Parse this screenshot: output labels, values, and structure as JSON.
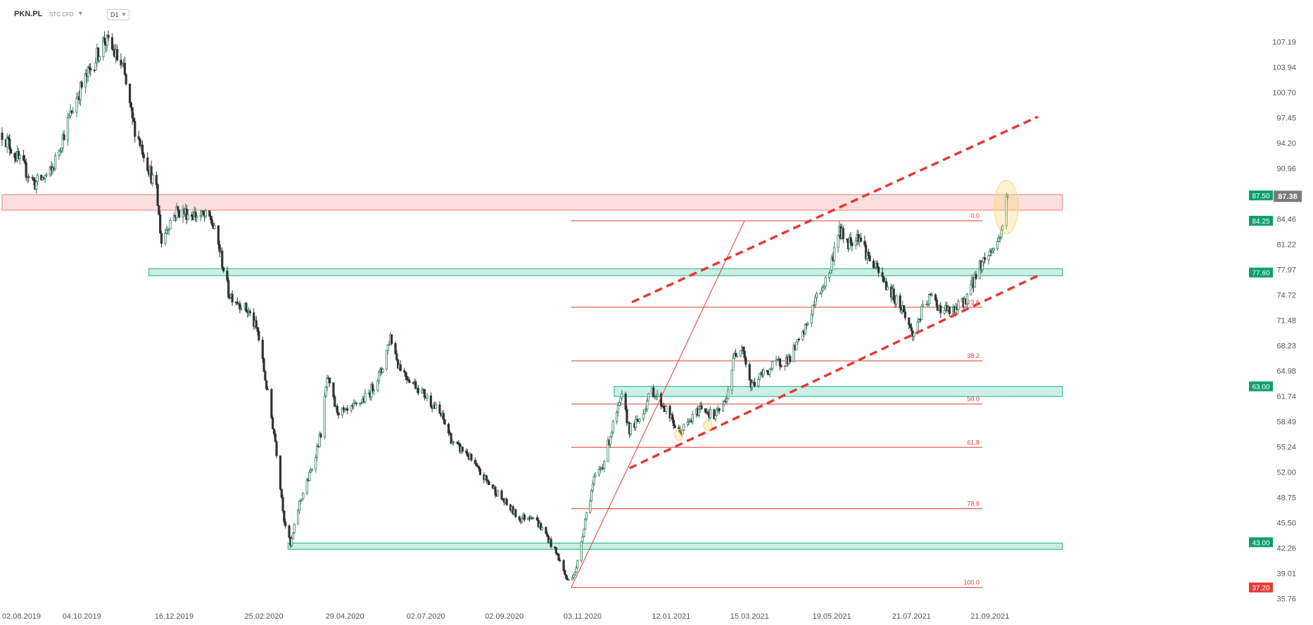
{
  "header": {
    "symbol": "PKN.PL",
    "instrument_type": "STC CFD",
    "timeframe": "D1"
  },
  "colors": {
    "bull": "#2e7d5b",
    "bear": "#333333",
    "support_zone": "#19b38a",
    "resistance_zone": "#f4a3a3",
    "fib_line": "#e53935",
    "channel": "#e53935",
    "current_price_bg": "#7a7a7a",
    "level_green": "#0e9f6e",
    "level_red": "#e53935",
    "highlight": "#f6d77c"
  },
  "chart_data": {
    "type": "candlestick",
    "title": "",
    "ylim": [
      35.0,
      109.5
    ],
    "y_ticks": [
      "107.19",
      "103.94",
      "100.70",
      "97.45",
      "94.20",
      "90.96",
      "87.71",
      "84.46",
      "81.22",
      "77.97",
      "74.72",
      "71.48",
      "68.23",
      "64.98",
      "61.74",
      "58.49",
      "55.24",
      "52.00",
      "48.75",
      "45.50",
      "42.26",
      "39.01",
      "35.76"
    ],
    "x_ticks": [
      {
        "label": "02.08.2019",
        "date": "2019-08-02"
      },
      {
        "label": "04.10.2019",
        "date": "2019-10-04"
      },
      {
        "label": "16.12.2019",
        "date": "2019-12-16"
      },
      {
        "label": "25.02.2020",
        "date": "2020-02-25"
      },
      {
        "label": "29.04.2020",
        "date": "2020-04-29"
      },
      {
        "label": "02.07.2020",
        "date": "2020-07-02"
      },
      {
        "label": "02.09.2020",
        "date": "2020-09-02"
      },
      {
        "label": "03.11.2020",
        "date": "2020-11-03"
      },
      {
        "label": "12.01.2021",
        "date": "2021-01-12"
      },
      {
        "label": "15.03.2021",
        "date": "2021-03-15"
      },
      {
        "label": "19.05.2021",
        "date": "2021-05-19"
      },
      {
        "label": "21.07.2021",
        "date": "2021-07-21"
      },
      {
        "label": "21.09.2021",
        "date": "2021-09-21"
      }
    ],
    "close_path": [
      {
        "date": "2019-08-02",
        "close": 95.5
      },
      {
        "date": "2019-08-15",
        "close": 92.0
      },
      {
        "date": "2019-08-28",
        "close": 89.0
      },
      {
        "date": "2019-09-10",
        "close": 90.5
      },
      {
        "date": "2019-09-20",
        "close": 95.5
      },
      {
        "date": "2019-10-01",
        "close": 100.5
      },
      {
        "date": "2019-10-12",
        "close": 104.0
      },
      {
        "date": "2019-10-22",
        "close": 107.5
      },
      {
        "date": "2019-10-29",
        "close": 106.0
      },
      {
        "date": "2019-11-06",
        "close": 103.5
      },
      {
        "date": "2019-11-13",
        "close": 97.0
      },
      {
        "date": "2019-11-22",
        "close": 93.0
      },
      {
        "date": "2019-12-02",
        "close": 88.0
      },
      {
        "date": "2019-12-06",
        "close": 81.5
      },
      {
        "date": "2019-12-12",
        "close": 84.0
      },
      {
        "date": "2019-12-18",
        "close": 85.5
      },
      {
        "date": "2020-01-02",
        "close": 85.0
      },
      {
        "date": "2020-01-14",
        "close": 84.5
      },
      {
        "date": "2020-01-21",
        "close": 80.5
      },
      {
        "date": "2020-01-28",
        "close": 75.0
      },
      {
        "date": "2020-02-04",
        "close": 74.0
      },
      {
        "date": "2020-02-13",
        "close": 72.5
      },
      {
        "date": "2020-02-20",
        "close": 70.0
      },
      {
        "date": "2020-02-27",
        "close": 63.0
      },
      {
        "date": "2020-03-05",
        "close": 56.0
      },
      {
        "date": "2020-03-12",
        "close": 46.0
      },
      {
        "date": "2020-03-17",
        "close": 42.5
      },
      {
        "date": "2020-03-24",
        "close": 48.0
      },
      {
        "date": "2020-04-02",
        "close": 52.0
      },
      {
        "date": "2020-04-10",
        "close": 57.0
      },
      {
        "date": "2020-04-15",
        "close": 64.0
      },
      {
        "date": "2020-04-22",
        "close": 60.0
      },
      {
        "date": "2020-04-30",
        "close": 59.5
      },
      {
        "date": "2020-05-08",
        "close": 60.5
      },
      {
        "date": "2020-05-18",
        "close": 62.0
      },
      {
        "date": "2020-05-28",
        "close": 65.0
      },
      {
        "date": "2020-06-04",
        "close": 69.5
      },
      {
        "date": "2020-06-10",
        "close": 66.0
      },
      {
        "date": "2020-06-16",
        "close": 64.5
      },
      {
        "date": "2020-06-25",
        "close": 63.0
      },
      {
        "date": "2020-07-06",
        "close": 61.0
      },
      {
        "date": "2020-07-15",
        "close": 59.0
      },
      {
        "date": "2020-07-24",
        "close": 55.5
      },
      {
        "date": "2020-08-03",
        "close": 54.5
      },
      {
        "date": "2020-08-13",
        "close": 52.0
      },
      {
        "date": "2020-08-24",
        "close": 50.0
      },
      {
        "date": "2020-09-03",
        "close": 48.0
      },
      {
        "date": "2020-09-14",
        "close": 46.0
      },
      {
        "date": "2020-09-24",
        "close": 46.5
      },
      {
        "date": "2020-10-05",
        "close": 44.0
      },
      {
        "date": "2020-10-15",
        "close": 41.0
      },
      {
        "date": "2020-10-22",
        "close": 38.0
      },
      {
        "date": "2020-10-29",
        "close": 39.5
      },
      {
        "date": "2020-11-05",
        "close": 46.0
      },
      {
        "date": "2020-11-12",
        "close": 51.0
      },
      {
        "date": "2020-11-19",
        "close": 53.0
      },
      {
        "date": "2020-11-27",
        "close": 58.0
      },
      {
        "date": "2020-12-04",
        "close": 61.5
      },
      {
        "date": "2020-12-10",
        "close": 57.5
      },
      {
        "date": "2020-12-17",
        "close": 58.5
      },
      {
        "date": "2020-12-28",
        "close": 62.5
      },
      {
        "date": "2021-01-08",
        "close": 60.0
      },
      {
        "date": "2021-01-18",
        "close": 57.0
      },
      {
        "date": "2021-01-27",
        "close": 58.5
      },
      {
        "date": "2021-02-05",
        "close": 60.5
      },
      {
        "date": "2021-02-15",
        "close": 59.0
      },
      {
        "date": "2021-02-24",
        "close": 61.0
      },
      {
        "date": "2021-03-03",
        "close": 67.0
      },
      {
        "date": "2021-03-09",
        "close": 68.5
      },
      {
        "date": "2021-03-16",
        "close": 63.0
      },
      {
        "date": "2021-03-25",
        "close": 64.5
      },
      {
        "date": "2021-04-06",
        "close": 66.0
      },
      {
        "date": "2021-04-15",
        "close": 66.5
      },
      {
        "date": "2021-04-26",
        "close": 69.5
      },
      {
        "date": "2021-05-06",
        "close": 74.0
      },
      {
        "date": "2021-05-17",
        "close": 77.5
      },
      {
        "date": "2021-05-24",
        "close": 83.0
      },
      {
        "date": "2021-06-01",
        "close": 81.5
      },
      {
        "date": "2021-06-09",
        "close": 82.5
      },
      {
        "date": "2021-06-17",
        "close": 79.5
      },
      {
        "date": "2021-06-25",
        "close": 77.5
      },
      {
        "date": "2021-07-05",
        "close": 75.0
      },
      {
        "date": "2021-07-14",
        "close": 73.0
      },
      {
        "date": "2021-07-22",
        "close": 69.5
      },
      {
        "date": "2021-07-29",
        "close": 72.5
      },
      {
        "date": "2021-08-05",
        "close": 74.5
      },
      {
        "date": "2021-08-13",
        "close": 73.0
      },
      {
        "date": "2021-08-23",
        "close": 72.5
      },
      {
        "date": "2021-09-01",
        "close": 74.0
      },
      {
        "date": "2021-09-08",
        "close": 76.5
      },
      {
        "date": "2021-09-13",
        "close": 78.5
      },
      {
        "date": "2021-09-20",
        "close": 80.0
      },
      {
        "date": "2021-09-27",
        "close": 81.5
      },
      {
        "date": "2021-09-30",
        "close": 83.0
      },
      {
        "date": "2021-10-05",
        "close": 87.38
      }
    ],
    "price_labels": [
      {
        "value": 87.5,
        "text": "87.50",
        "color": "green"
      },
      {
        "value": 84.25,
        "text": "84.25",
        "color": "green"
      },
      {
        "value": 77.6,
        "text": "77.60",
        "color": "green"
      },
      {
        "value": 63.0,
        "text": "63.00",
        "color": "green"
      },
      {
        "value": 43.0,
        "text": "43.00",
        "color": "green"
      },
      {
        "value": 37.2,
        "text": "37.20",
        "color": "red"
      }
    ],
    "current_price": {
      "value": 87.38,
      "text": "87.38"
    },
    "zones": [
      {
        "kind": "resistance",
        "from": 85.6,
        "to": 87.6,
        "start": "2019-08-02"
      },
      {
        "kind": "support",
        "from": 77.2,
        "to": 78.1,
        "start": "2019-11-26"
      },
      {
        "kind": "support",
        "from": 61.7,
        "to": 63.0,
        "start": "2020-11-28"
      },
      {
        "kind": "support",
        "from": 42.1,
        "to": 42.9,
        "start": "2020-03-15"
      }
    ],
    "fibonacci": {
      "high": 84.25,
      "low": 37.2,
      "start": "2020-10-25",
      "end": "2021-09-15",
      "levels": [
        {
          "ratio": "0.0",
          "value": 84.25
        },
        {
          "ratio": "23.6",
          "value": 73.15
        },
        {
          "ratio": "38.2",
          "value": 66.28
        },
        {
          "ratio": "50.0",
          "value": 60.73
        },
        {
          "ratio": "61.8",
          "value": 55.18
        },
        {
          "ratio": "78.6",
          "value": 47.3
        },
        {
          "ratio": "100.0",
          "value": 37.2
        }
      ]
    },
    "trend_line": {
      "from": {
        "date": "2020-10-25",
        "value": 37.2
      },
      "to": {
        "date": "2021-03-11",
        "value": 84.25
      }
    },
    "channel": {
      "upper": {
        "from": {
          "date": "2020-12-12",
          "value": 73.8
        },
        "to": {
          "date": "2021-10-29",
          "value": 97.6
        }
      },
      "lower": {
        "from": {
          "date": "2020-12-10",
          "value": 52.5
        },
        "to": {
          "date": "2021-10-29",
          "value": 77.2
        }
      }
    },
    "highlights": [
      {
        "date": "2021-10-04",
        "value": 86.0,
        "kind": "ellipse"
      },
      {
        "date": "2021-01-18",
        "value": 56.8,
        "kind": "ellipse"
      },
      {
        "date": "2021-02-10",
        "value": 58.0,
        "kind": "ellipse"
      }
    ]
  }
}
